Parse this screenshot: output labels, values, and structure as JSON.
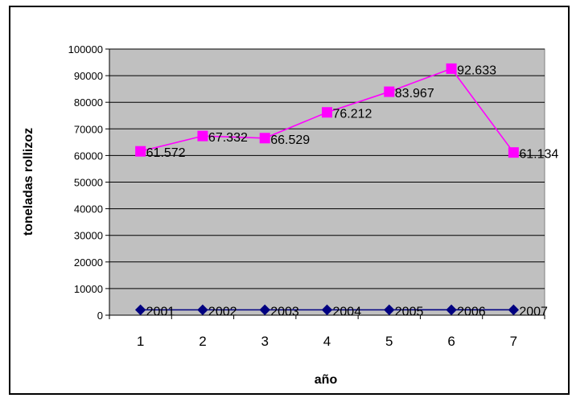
{
  "chart_data": {
    "type": "line",
    "title": "",
    "xlabel": "año",
    "ylabel": "toneladas rollizoz",
    "categories": [
      "1",
      "2",
      "3",
      "4",
      "5",
      "6",
      "7"
    ],
    "ylim": [
      0,
      100000
    ],
    "yticks": [
      "0",
      "10000",
      "20000",
      "30000",
      "40000",
      "50000",
      "60000",
      "70000",
      "80000",
      "90000",
      "100000"
    ],
    "ytick_values": [
      0,
      10000,
      20000,
      30000,
      40000,
      50000,
      60000,
      70000,
      80000,
      90000,
      100000
    ],
    "grid": true,
    "plot_background": "#c0c0c0",
    "series": [
      {
        "values": [
          2001,
          2002,
          2003,
          2004,
          2005,
          2006,
          2007
        ],
        "labels": [
          "2001",
          "2002",
          "2003",
          "2004",
          "2005",
          "2006",
          "2007"
        ],
        "color": "#000080",
        "marker": "diamond"
      },
      {
        "values": [
          61572,
          67332,
          66529,
          76212,
          83967,
          92633,
          61134
        ],
        "labels": [
          "61.572",
          "67.332",
          "66.529",
          "76.212",
          "83.967",
          "92.633",
          "61.134"
        ],
        "color": "#ff00ff",
        "marker": "square"
      }
    ]
  }
}
